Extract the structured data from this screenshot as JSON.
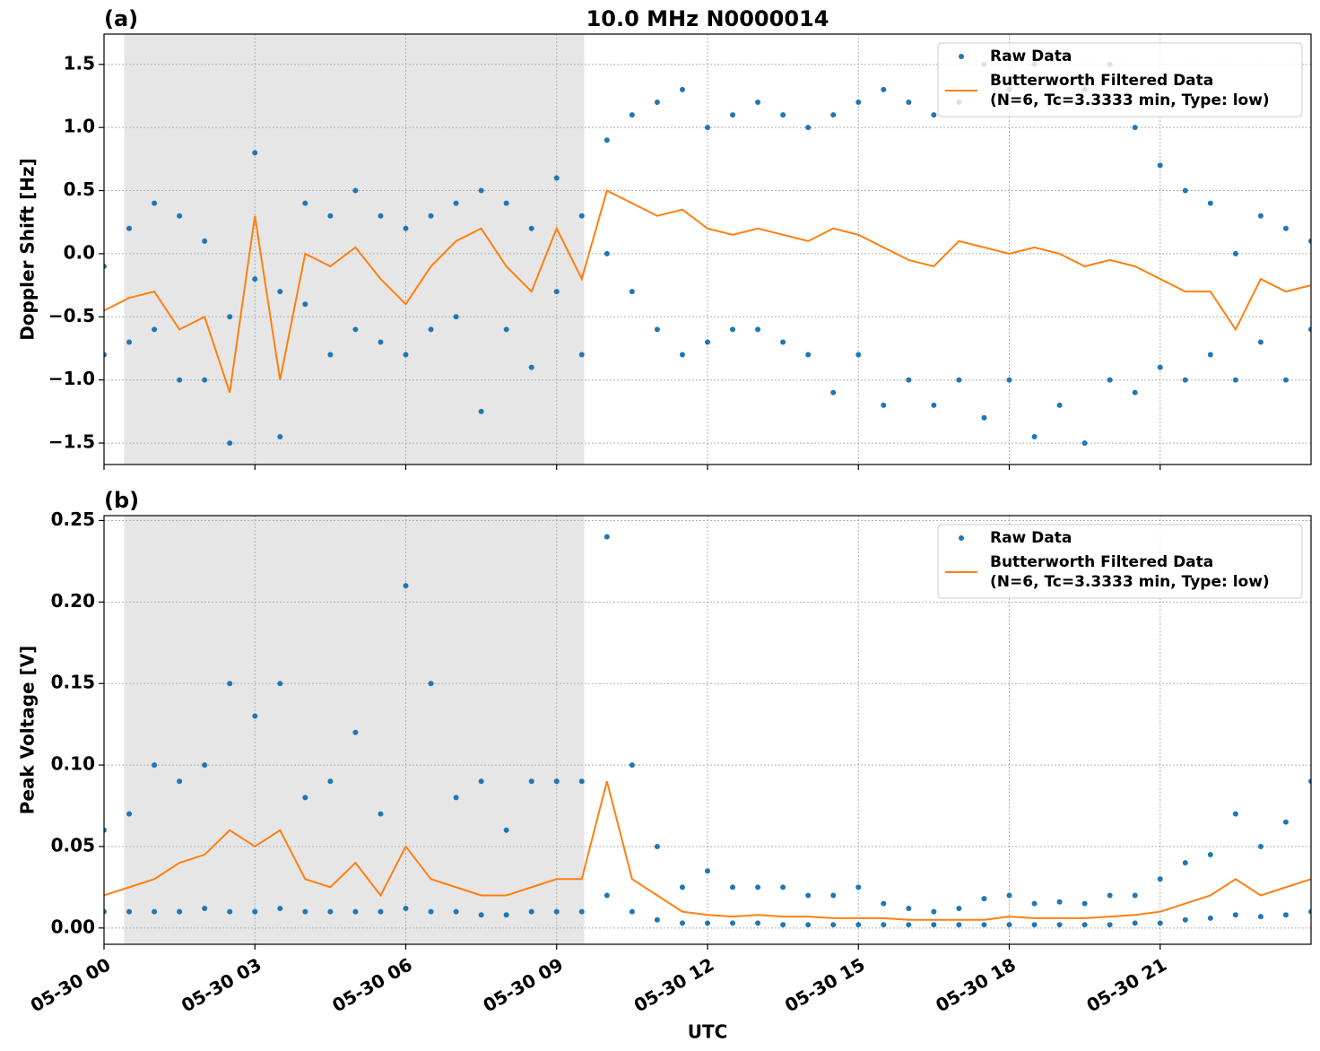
{
  "chart_data": [
    {
      "type": "line",
      "title": "10.0 MHz N0000014",
      "panel_label": "(a)",
      "ylabel": "Doppler Shift [Hz]",
      "xlim": [
        0,
        24
      ],
      "xticks": [
        0,
        3,
        6,
        9,
        12,
        15,
        18,
        21
      ],
      "ylim": [
        -1.67,
        1.74
      ],
      "yticks": [
        {
          "value": -1.5,
          "label": "−1.5"
        },
        {
          "value": -1,
          "label": "−1.0"
        },
        {
          "value": -0.5,
          "label": "−0.5"
        },
        {
          "value": 0,
          "label": "0.0"
        },
        0.5,
        {
          "value": 1,
          "label": "1.0"
        },
        1.5
      ],
      "grid": true,
      "legend": "upper right",
      "shade_span": [
        0.4,
        9.55
      ],
      "shade_color": "#e6e6e6",
      "series": [
        {
          "name": "Raw Data",
          "type": "scatter",
          "color": "#1f77b4",
          "x": [
            0,
            0.5,
            1,
            1.5,
            2,
            2.5,
            3,
            3.5,
            4,
            4.5,
            5,
            5.5,
            6,
            6.5,
            7,
            7.5,
            8,
            8.5,
            9,
            9.5,
            10,
            10.5,
            11,
            11.5,
            12,
            12.5,
            13,
            13.5,
            14,
            14.5,
            15,
            15.5,
            16,
            16.5,
            17,
            17.5,
            18,
            18.5,
            19,
            19.5,
            20,
            20.5,
            21,
            21.5,
            22,
            22.5,
            23,
            23.5,
            24,
            0,
            0.5,
            1,
            1.5,
            2,
            2.5,
            3,
            3.5,
            4,
            4.5,
            5,
            5.5,
            6,
            6.5,
            7,
            7.5,
            8,
            8.5,
            9,
            9.5,
            10,
            10.5,
            11,
            11.5,
            12,
            12.5,
            13,
            13.5,
            14,
            14.5,
            15,
            15.5,
            16,
            16.5,
            17,
            17.5,
            18,
            18.5,
            19,
            19.5,
            20,
            20.5,
            21,
            21.5,
            22,
            22.5,
            23,
            23.5,
            24
          ],
          "values": [
            -0.1,
            0.2,
            0.4,
            0.3,
            0.1,
            -0.5,
            0.8,
            -0.3,
            0.4,
            0.3,
            0.5,
            0.3,
            0.2,
            0.3,
            0.4,
            0.5,
            0.4,
            0.2,
            0.6,
            0.3,
            0.9,
            1.1,
            1.2,
            1.3,
            1.0,
            1.1,
            1.2,
            1.1,
            1.0,
            1.1,
            1.2,
            1.3,
            1.2,
            1.1,
            1.2,
            1.5,
            1.3,
            1.5,
            1.2,
            1.3,
            1.5,
            1.0,
            0.7,
            0.5,
            0.4,
            0.0,
            0.3,
            0.2,
            0.1,
            -0.8,
            -0.7,
            -0.6,
            -1.0,
            -1.0,
            -1.5,
            -0.2,
            -1.45,
            -0.4,
            -0.8,
            -0.6,
            -0.7,
            -0.8,
            -0.6,
            -0.5,
            -1.25,
            -0.6,
            -0.9,
            -0.3,
            -0.8,
            0.0,
            -0.3,
            -0.6,
            -0.8,
            -0.7,
            -0.6,
            -0.6,
            -0.7,
            -0.8,
            -1.1,
            -0.8,
            -1.2,
            -1.0,
            -1.2,
            -1.0,
            -1.3,
            -1.0,
            -1.45,
            -1.2,
            -1.5,
            -1.0,
            -1.1,
            -0.9,
            -1.0,
            -0.8,
            -1.0,
            -0.7,
            -1.0,
            -0.6
          ]
        },
        {
          "name": "Butterworth Filtered Data\n(N=6, Tc=3.3333 min, Type: low)",
          "type": "line",
          "color": "#ff7f0e",
          "x": [
            0,
            0.5,
            1,
            1.5,
            2,
            2.5,
            3,
            3.5,
            4,
            4.5,
            5,
            5.5,
            6,
            6.5,
            7,
            7.5,
            8,
            8.5,
            9,
            9.5,
            10,
            10.5,
            11,
            11.5,
            12,
            12.5,
            13,
            13.5,
            14,
            14.5,
            15,
            15.5,
            16,
            16.5,
            17,
            17.5,
            18,
            18.5,
            19,
            19.5,
            20,
            20.5,
            21,
            21.5,
            22,
            22.5,
            23,
            23.5,
            24
          ],
          "values": [
            -0.45,
            -0.35,
            -0.3,
            -0.6,
            -0.5,
            -1.1,
            0.3,
            -1.0,
            0.0,
            -0.1,
            0.05,
            -0.2,
            -0.4,
            -0.1,
            0.1,
            0.2,
            -0.1,
            -0.3,
            0.2,
            -0.2,
            0.5,
            0.4,
            0.3,
            0.35,
            0.2,
            0.15,
            0.2,
            0.15,
            0.1,
            0.2,
            0.15,
            0.05,
            -0.05,
            -0.1,
            0.1,
            0.05,
            0.0,
            0.05,
            0.0,
            -0.1,
            -0.05,
            -0.1,
            -0.2,
            -0.3,
            -0.3,
            -0.6,
            -0.2,
            -0.3,
            -0.25
          ]
        }
      ]
    },
    {
      "type": "line",
      "panel_label": "(b)",
      "ylabel": "Peak Voltage [V]",
      "xlabel": "UTC",
      "xlim": [
        0,
        24
      ],
      "xticks": [
        {
          "value": 0,
          "label": "05-30 00"
        },
        {
          "value": 3,
          "label": "05-30 03"
        },
        {
          "value": 6,
          "label": "05-30 06"
        },
        {
          "value": 9,
          "label": "05-30 09"
        },
        {
          "value": 12,
          "label": "05-30 12"
        },
        {
          "value": 15,
          "label": "05-30 15"
        },
        {
          "value": 18,
          "label": "05-30 18"
        },
        {
          "value": 21,
          "label": "05-30 21"
        }
      ],
      "ylim": [
        -0.01,
        0.253
      ],
      "yticks": [
        {
          "value": 0,
          "label": "0.00"
        },
        0.05,
        {
          "value": 0.1,
          "label": "0.10"
        },
        0.15,
        {
          "value": 0.2,
          "label": "0.20"
        },
        0.25
      ],
      "grid": true,
      "legend": "upper right",
      "shade_span": [
        0.4,
        9.55
      ],
      "shade_color": "#e6e6e6",
      "series": [
        {
          "name": "Raw Data",
          "type": "scatter",
          "color": "#1f77b4",
          "x": [
            0,
            0.5,
            1,
            1.5,
            2,
            2.5,
            3,
            3.5,
            4,
            4.5,
            5,
            5.5,
            6,
            6.5,
            7,
            7.5,
            8,
            8.5,
            9,
            9.5,
            10,
            10.5,
            11,
            11.5,
            12,
            12.5,
            13,
            13.5,
            14,
            14.5,
            15,
            15.5,
            16,
            16.5,
            17,
            17.5,
            18,
            18.5,
            19,
            19.5,
            20,
            20.5,
            21,
            21.5,
            22,
            22.5,
            23,
            23.5,
            24,
            0,
            0.5,
            1,
            1.5,
            2,
            2.5,
            3,
            3.5,
            4,
            4.5,
            5,
            5.5,
            6,
            6.5,
            7,
            7.5,
            8,
            8.5,
            9,
            9.5,
            10,
            10.5,
            11,
            11.5,
            12,
            12.5,
            13,
            13.5,
            14,
            14.5,
            15,
            15.5,
            16,
            16.5,
            17,
            17.5,
            18,
            18.5,
            19,
            19.5,
            20,
            20.5,
            21,
            21.5,
            22,
            22.5,
            23,
            23.5,
            24
          ],
          "values": [
            0.06,
            0.07,
            0.1,
            0.09,
            0.1,
            0.15,
            0.13,
            0.15,
            0.08,
            0.09,
            0.12,
            0.07,
            0.21,
            0.15,
            0.08,
            0.09,
            0.06,
            0.09,
            0.09,
            0.09,
            0.24,
            0.1,
            0.05,
            0.025,
            0.035,
            0.025,
            0.025,
            0.025,
            0.02,
            0.02,
            0.025,
            0.015,
            0.012,
            0.01,
            0.012,
            0.018,
            0.02,
            0.015,
            0.016,
            0.015,
            0.02,
            0.02,
            0.03,
            0.04,
            0.045,
            0.07,
            0.05,
            0.065,
            0.09,
            0.01,
            0.01,
            0.01,
            0.01,
            0.012,
            0.01,
            0.01,
            0.012,
            0.01,
            0.01,
            0.01,
            0.01,
            0.012,
            0.01,
            0.01,
            0.008,
            0.008,
            0.01,
            0.01,
            0.01,
            0.02,
            0.01,
            0.005,
            0.003,
            0.003,
            0.003,
            0.003,
            0.002,
            0.002,
            0.002,
            0.002,
            0.002,
            0.002,
            0.002,
            0.002,
            0.002,
            0.002,
            0.002,
            0.002,
            0.002,
            0.002,
            0.003,
            0.003,
            0.005,
            0.006,
            0.008,
            0.007,
            0.008,
            0.01
          ]
        },
        {
          "name": "Butterworth Filtered Data\n(N=6, Tc=3.3333 min, Type: low)",
          "type": "line",
          "color": "#ff7f0e",
          "x": [
            0,
            0.5,
            1,
            1.5,
            2,
            2.5,
            3,
            3.5,
            4,
            4.5,
            5,
            5.5,
            6,
            6.5,
            7,
            7.5,
            8,
            8.5,
            9,
            9.5,
            10,
            10.5,
            11,
            11.5,
            12,
            12.5,
            13,
            13.5,
            14,
            14.5,
            15,
            15.5,
            16,
            16.5,
            17,
            17.5,
            18,
            18.5,
            19,
            19.5,
            20,
            20.5,
            21,
            21.5,
            22,
            22.5,
            23,
            23.5,
            24
          ],
          "values": [
            0.02,
            0.025,
            0.03,
            0.04,
            0.045,
            0.06,
            0.05,
            0.06,
            0.03,
            0.025,
            0.04,
            0.02,
            0.05,
            0.03,
            0.025,
            0.02,
            0.02,
            0.025,
            0.03,
            0.03,
            0.09,
            0.03,
            0.02,
            0.01,
            0.008,
            0.007,
            0.008,
            0.007,
            0.007,
            0.006,
            0.006,
            0.006,
            0.005,
            0.005,
            0.005,
            0.005,
            0.007,
            0.006,
            0.006,
            0.006,
            0.007,
            0.008,
            0.01,
            0.015,
            0.02,
            0.03,
            0.02,
            0.025,
            0.03
          ]
        }
      ]
    }
  ]
}
